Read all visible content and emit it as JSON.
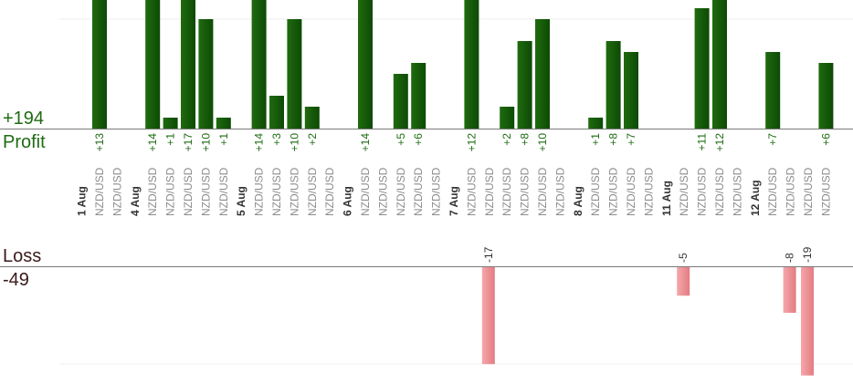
{
  "summary": {
    "profit_total": "+194",
    "profit_label": "Profit",
    "loss_label": "Loss",
    "loss_total": "-49"
  },
  "colors": {
    "profit_bar": "#1f6b0f",
    "profit_bar_dark": "#0d4a05",
    "profit_text": "#1e6b12",
    "loss_bar": "#f6a7aa",
    "loss_bar_edge": "#e27c82",
    "loss_text": "#333333",
    "axis": "#7a7a7a",
    "grid": "#ececec",
    "date_text": "#333333",
    "pair_text": "#8c8c8c"
  },
  "chart_data": {
    "type": "bar",
    "title": "",
    "profit_axis_max": 12,
    "loss_axis_max": 17,
    "days": [
      {
        "date": "1 Aug",
        "trades": [
          {
            "pair": "NZD/USD",
            "value": 13,
            "label": "+13"
          },
          {
            "pair": "NZD/USD",
            "value": null,
            "label": ""
          }
        ]
      },
      {
        "date": "4 Aug",
        "trades": [
          {
            "pair": "NZD/USD",
            "value": 14,
            "label": "+14"
          },
          {
            "pair": "NZD/USD",
            "value": 1,
            "label": "+1"
          },
          {
            "pair": "NZD/USD",
            "value": 17,
            "label": "+17"
          },
          {
            "pair": "NZD/USD",
            "value": 10,
            "label": "+10"
          },
          {
            "pair": "NZD/USD",
            "value": 1,
            "label": "+1"
          }
        ]
      },
      {
        "date": "5 Aug",
        "trades": [
          {
            "pair": "NZD/USD",
            "value": 14,
            "label": "+14"
          },
          {
            "pair": "NZD/USD",
            "value": 3,
            "label": "+3"
          },
          {
            "pair": "NZD/USD",
            "value": 10,
            "label": "+10"
          },
          {
            "pair": "NZD/USD",
            "value": 2,
            "label": "+2"
          },
          {
            "pair": "NZD/USD",
            "value": null,
            "label": ""
          }
        ]
      },
      {
        "date": "6 Aug",
        "trades": [
          {
            "pair": "NZD/USD",
            "value": 14,
            "label": "+14"
          },
          {
            "pair": "NZD/USD",
            "value": null,
            "label": ""
          },
          {
            "pair": "NZD/USD",
            "value": 5,
            "label": "+5"
          },
          {
            "pair": "NZD/USD",
            "value": 6,
            "label": "+6"
          },
          {
            "pair": "NZD/USD",
            "value": null,
            "label": ""
          }
        ]
      },
      {
        "date": "7 Aug",
        "trades": [
          {
            "pair": "NZD/USD",
            "value": 12,
            "label": "+12"
          },
          {
            "pair": "NZD/USD",
            "value": -17,
            "label": "-17"
          },
          {
            "pair": "NZD/USD",
            "value": 2,
            "label": "+2"
          },
          {
            "pair": "NZD/USD",
            "value": 8,
            "label": "+8"
          },
          {
            "pair": "NZD/USD",
            "value": 10,
            "label": "+10"
          },
          {
            "pair": "NZD/USD",
            "value": null,
            "label": ""
          }
        ]
      },
      {
        "date": "8 Aug",
        "trades": [
          {
            "pair": "NZD/USD",
            "value": 1,
            "label": "+1"
          },
          {
            "pair": "NZD/USD",
            "value": 8,
            "label": "+8"
          },
          {
            "pair": "NZD/USD",
            "value": 7,
            "label": "+7"
          },
          {
            "pair": "NZD/USD",
            "value": null,
            "label": ""
          }
        ]
      },
      {
        "date": "11 Aug",
        "trades": [
          {
            "pair": "NZD/USD",
            "value": -5,
            "label": "-5"
          },
          {
            "pair": "NZD/USD",
            "value": 11,
            "label": "+11"
          },
          {
            "pair": "NZD/USD",
            "value": 12,
            "label": "+12"
          },
          {
            "pair": "NZD/USD",
            "value": null,
            "label": ""
          }
        ]
      },
      {
        "date": "12 Aug",
        "trades": [
          {
            "pair": "NZD/USD",
            "value": 7,
            "label": "+7"
          },
          {
            "pair": "NZD/USD",
            "value": -8,
            "label": "-8"
          },
          {
            "pair": "NZD/USD",
            "value": -19,
            "label": "-19"
          },
          {
            "pair": "NZD/USD",
            "value": 6,
            "label": "+6"
          }
        ]
      }
    ]
  }
}
